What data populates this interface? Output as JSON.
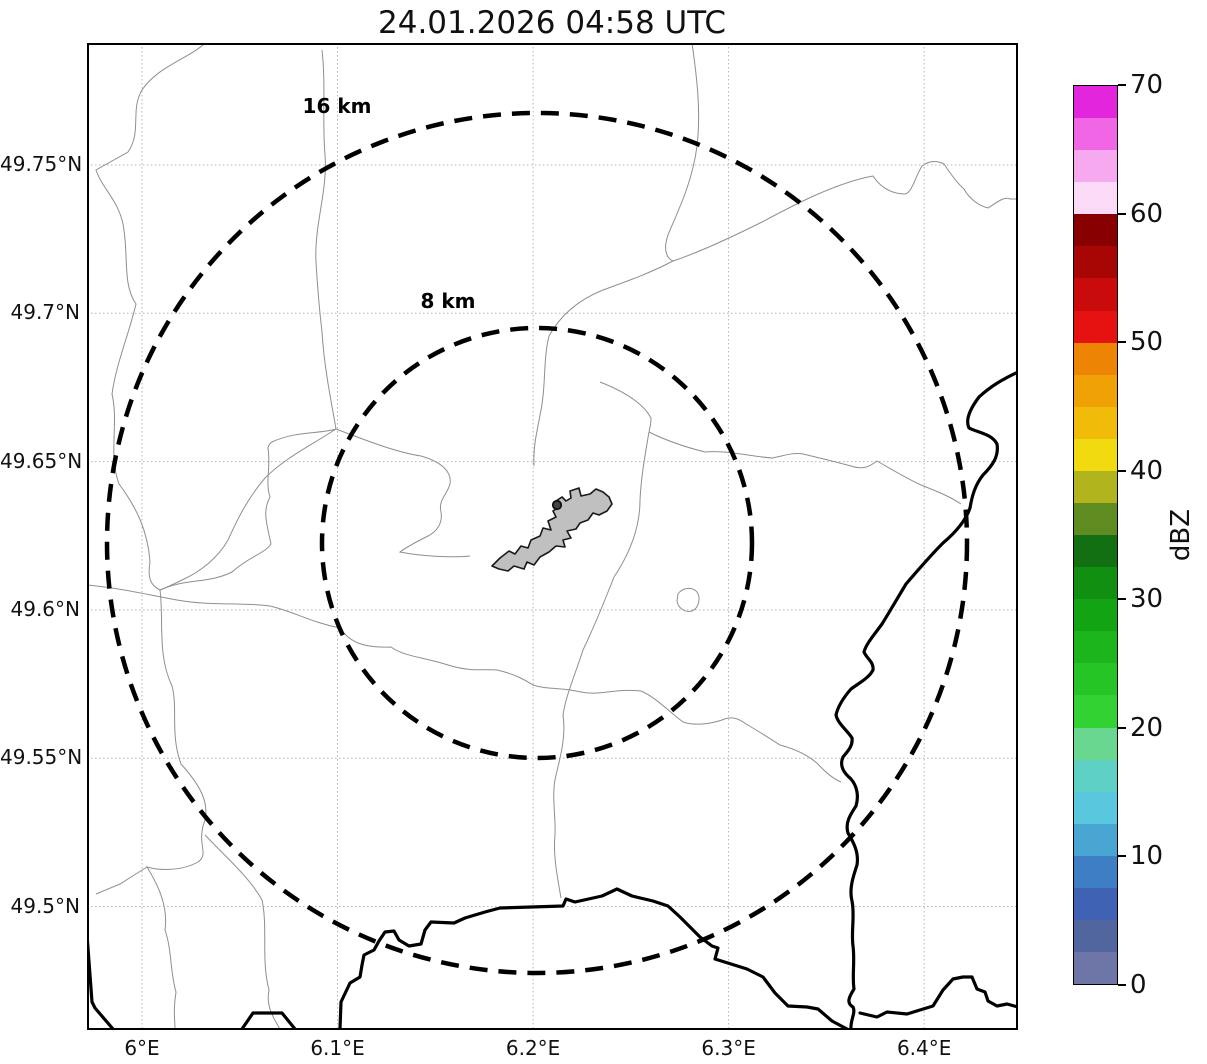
{
  "title": "24.01.2026 04:58 UTC",
  "map": {
    "x_ticks": [
      {
        "value": 6.0,
        "label": "6°E"
      },
      {
        "value": 6.1,
        "label": "6.1°E"
      },
      {
        "value": 6.2,
        "label": "6.2°E"
      },
      {
        "value": 6.3,
        "label": "6.3°E"
      },
      {
        "value": 6.4,
        "label": "6.4°E"
      }
    ],
    "y_ticks": [
      {
        "value": 49.75,
        "label": "49.75°N"
      },
      {
        "value": 49.7,
        "label": "49.7°N"
      },
      {
        "value": 49.65,
        "label": "49.65°N"
      },
      {
        "value": 49.6,
        "label": "49.6°N"
      },
      {
        "value": 49.55,
        "label": "49.55°N"
      },
      {
        "value": 49.5,
        "label": "49.5°N"
      }
    ],
    "range_rings": [
      {
        "label": "16 km",
        "radius_km": 16
      },
      {
        "label": "8 km",
        "radius_km": 8
      }
    ]
  },
  "colorbar": {
    "label": "dBZ",
    "min": 0,
    "max": 70,
    "band_step": 2.5,
    "ticks": [
      0,
      10,
      20,
      30,
      40,
      50,
      60,
      70
    ],
    "band_colors_low_to_high": [
      "#6d76a6",
      "#51669f",
      "#3f62b5",
      "#3e7ec5",
      "#49a6d3",
      "#59c8de",
      "#5ed0c4",
      "#69d78f",
      "#31d231",
      "#26c526",
      "#1cb51c",
      "#12a412",
      "#108f10",
      "#127012",
      "#5e8c20",
      "#b1b41c",
      "#f2da10",
      "#f1bb0a",
      "#f0a106",
      "#ee8404",
      "#e61111",
      "#ca0b0b",
      "#a80505",
      "#880000",
      "#fbdaf7",
      "#f7a9ef",
      "#f066e5",
      "#e325dd"
    ]
  },
  "chart_data": {
    "type": "heatmap",
    "title": "24.01.2026 04:58 UTC",
    "description": "Weather radar reflectivity map centered on an airport area; no reflectivity echoes are visible (clear map), with 8 km and 16 km range rings, national borders (thick) and municipal boundaries (thin).",
    "x_axis": {
      "tick_labels": [
        "6°E",
        "6.1°E",
        "6.2°E",
        "6.3°E",
        "6.4°E"
      ],
      "range_deg_east": [
        5.97,
        6.45
      ],
      "grid": true
    },
    "y_axis": {
      "tick_labels": [
        "49.75°N",
        "49.7°N",
        "49.65°N",
        "49.6°N",
        "49.55°N",
        "49.5°N"
      ],
      "range_deg_north": [
        49.46,
        49.79
      ],
      "grid": true
    },
    "colorbar": {
      "label": "dBZ",
      "range": [
        0,
        70
      ],
      "major_ticks": [
        0,
        10,
        20,
        30,
        40,
        50,
        60,
        70
      ],
      "band_width_dbz": 2.5,
      "position": "right"
    },
    "range_rings_km": [
      8,
      16
    ],
    "series": [
      {
        "name": "radar reflectivity",
        "values": []
      }
    ]
  }
}
